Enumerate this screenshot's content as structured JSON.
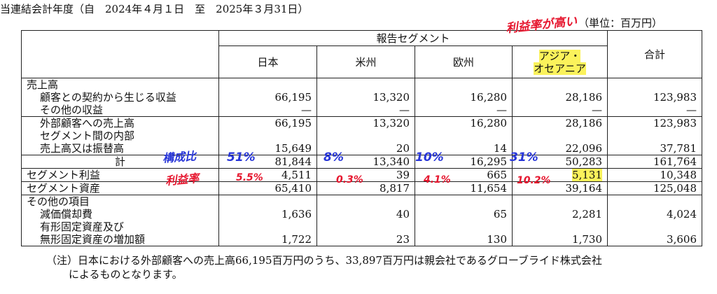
{
  "period_text": "当連結会計年度（自　2024年４月１日　至　2025年３月31日）",
  "unit_text": "（単位：百万円）",
  "header": {
    "segment_group": "報告セグメント",
    "japan": "日本",
    "americas": "米州",
    "europe": "欧州",
    "asia_line1": "アジア・",
    "asia_line2": "オセアニア",
    "total": "合計"
  },
  "rows": {
    "revenue_heading": "売上高",
    "contract_revenue": {
      "label": "顧客との契約から生じる収益",
      "values": [
        "66,195",
        "13,320",
        "16,280",
        "28,186",
        "123,983"
      ]
    },
    "other_revenue": {
      "label": "その他の収益",
      "values": [
        "—",
        "—",
        "—",
        "—",
        "—"
      ]
    },
    "external_sales": {
      "label": "外部顧客への売上高",
      "values": [
        "66,195",
        "13,320",
        "16,280",
        "28,186",
        "123,983"
      ]
    },
    "intersegment_label1": "セグメント間の内部",
    "intersegment": {
      "label": "売上高又は振替高",
      "values": [
        "15,649",
        "20",
        "14",
        "22,096",
        "37,781"
      ]
    },
    "subtotal": {
      "label": "計",
      "values": [
        "81,844",
        "13,340",
        "16,295",
        "50,283",
        "161,764"
      ]
    },
    "segment_profit": {
      "label": "セグメント利益",
      "values": [
        "4,511",
        "39",
        "665",
        "5,131",
        "10,348"
      ]
    },
    "segment_assets": {
      "label": "セグメント資産",
      "values": [
        "65,410",
        "8,817",
        "11,654",
        "39,164",
        "125,048"
      ]
    },
    "other_heading": "その他の項目",
    "depreciation": {
      "label": "減価償却費",
      "values": [
        "1,636",
        "40",
        "65",
        "2,281",
        "4,024"
      ]
    },
    "capex_label1": "有形固定資産及び",
    "capex": {
      "label": "無形固定資産の増加額",
      "values": [
        "1,722",
        "23",
        "130",
        "1,730",
        "3,606"
      ]
    }
  },
  "note_line1": "（注）日本における外部顧客への売上高66,195百万円のうち、33,897百万円は親会社であるグローブライド株式会社",
  "note_line2": "によるものとなります。",
  "annotations": {
    "high_margin": "利益率が高い",
    "composition": "構成比",
    "comp_japan": "51%",
    "comp_americas": "8%",
    "comp_europe": "10%",
    "comp_asia": "31%",
    "margin_label": "利益率",
    "margin_japan": "5.5%",
    "margin_americas": "0.3%",
    "margin_europe": "4.1%",
    "margin_asia": "10.2%"
  },
  "colors": {
    "highlight": "#fbf25b",
    "blue_ink": "#2836d8",
    "red_ink": "#e6162e"
  }
}
